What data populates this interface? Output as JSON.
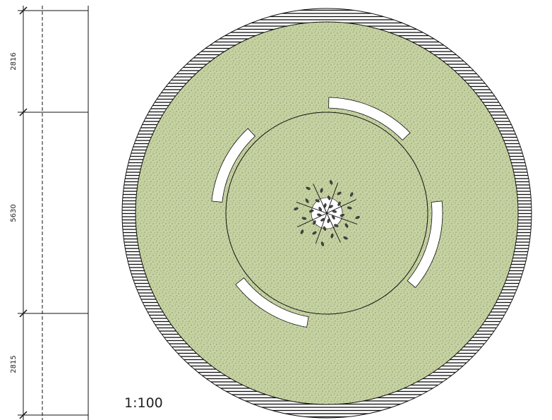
{
  "dimensions": [
    {
      "label": "2816"
    },
    {
      "label": "5630"
    },
    {
      "label": "2815"
    }
  ],
  "scale": "1:100"
}
